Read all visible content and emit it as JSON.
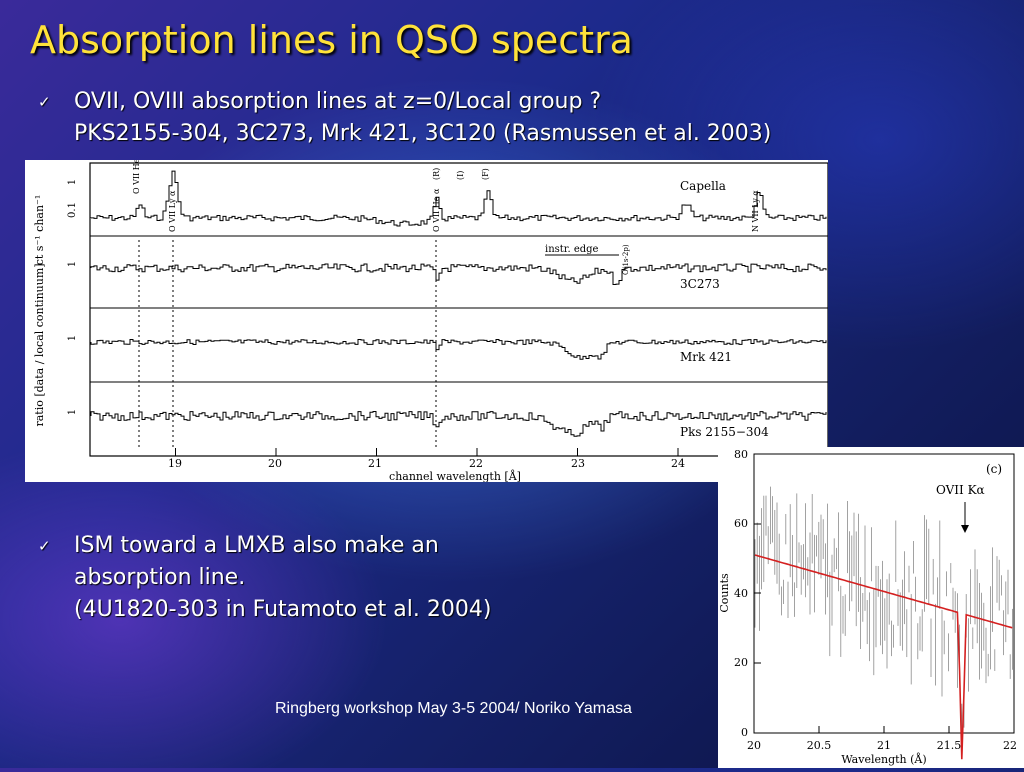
{
  "slide": {
    "title": "Absorption lines in QSO spectra",
    "bullet1": {
      "line1": "OVII, OVIII absorption lines at z=0/Local group ?",
      "line2": "PKS2155-304, 3C273, Mrk 421, 3C120  (Rasmussen et al. 2003)"
    },
    "bullet2": {
      "line1": "ISM toward a LMXB also make an",
      "line2": "absorption line.",
      "line3": "(4U1820-303 in Futamoto et al. 2004)"
    },
    "footer": "Ringberg workshop May 3-5 2004/ Noriko Yamasa",
    "check_glyph": "✓"
  },
  "figure1": {
    "panels": [
      "Capella",
      "3C273",
      "Mrk 421",
      "Pks 2155−304"
    ],
    "x_ticks": [
      "19",
      "20",
      "21",
      "22",
      "23",
      "24"
    ],
    "xlabel": "channel wavelength [Å]",
    "ylabel_top": "ct s⁻¹ chan⁻¹",
    "ylabel_bottom": "ratio [data / local continuum]",
    "y_ticks_top": [
      "1",
      "0.1"
    ],
    "y_tick_panels": "1",
    "annotation": "instr. edge",
    "line_labels": [
      "O VII He β",
      "O VII Ly α",
      "(R)",
      "(I)",
      "(F)",
      "O VII He α",
      "N VII Ly α",
      "O(1s-2p)"
    ]
  },
  "figure2": {
    "panel_label": "(c)",
    "line_label": "OVII Kα",
    "xlabel": "Wavelength (Å)",
    "ylabel": "Counts",
    "x_ticks": [
      "20",
      "20.5",
      "21",
      "21.5",
      "22"
    ],
    "y_ticks": [
      "0",
      "20",
      "40",
      "60",
      "80"
    ],
    "model_color": "#d42020"
  }
}
